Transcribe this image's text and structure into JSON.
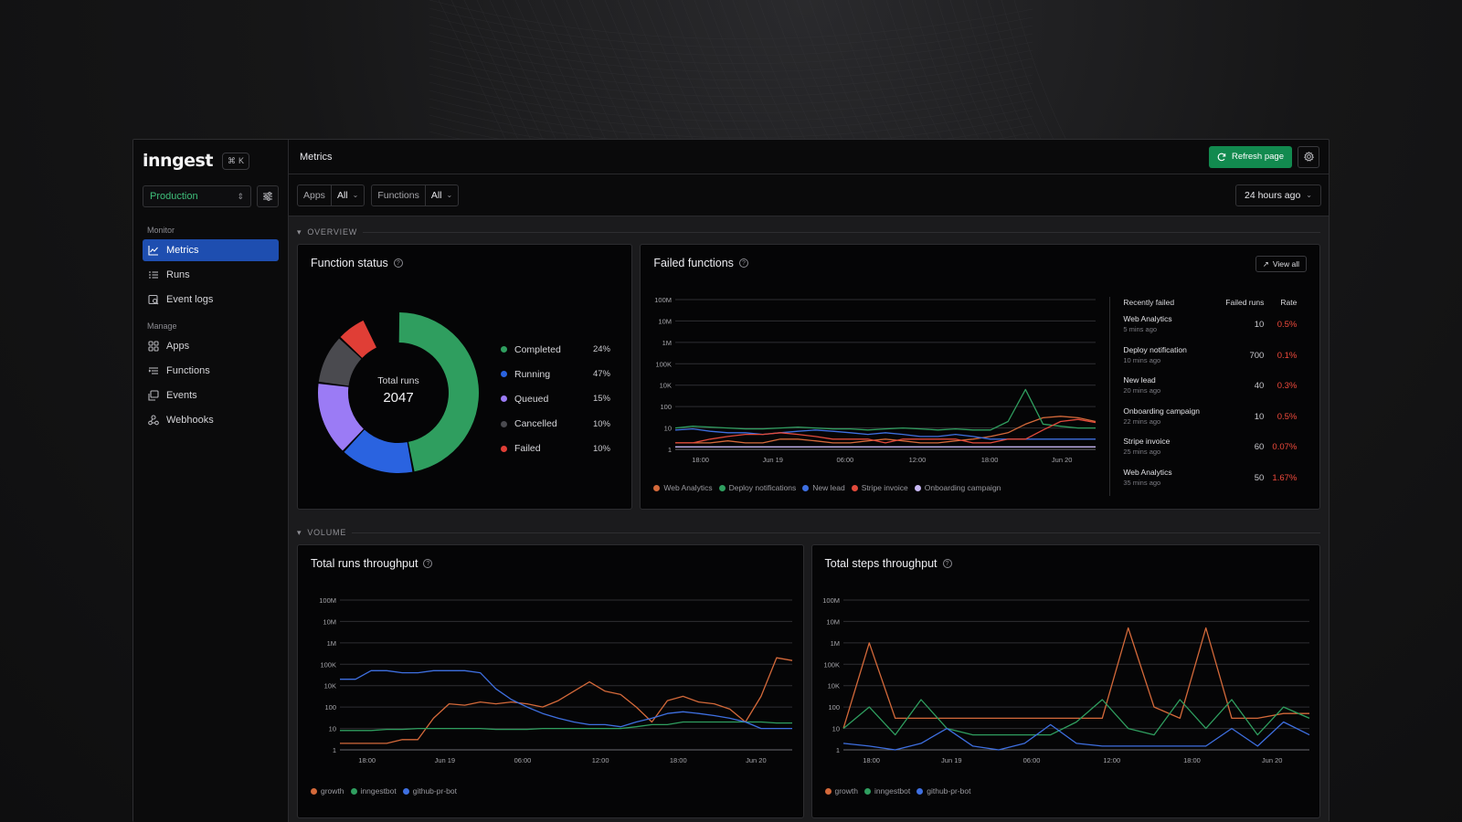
{
  "brand": {
    "logo": "inngest",
    "shortcut_symbol": "⌘",
    "shortcut_key": "K"
  },
  "sidebar": {
    "environment": "Production",
    "groups": [
      {
        "label": "Monitor",
        "items": [
          {
            "label": "Metrics",
            "icon": "chart-line-icon",
            "active": true
          },
          {
            "label": "Runs",
            "icon": "list-icon"
          },
          {
            "label": "Event logs",
            "icon": "event-log-icon"
          }
        ]
      },
      {
        "label": "Manage",
        "items": [
          {
            "label": "Apps",
            "icon": "apps-grid-icon"
          },
          {
            "label": "Functions",
            "icon": "functions-icon"
          },
          {
            "label": "Events",
            "icon": "events-icon"
          },
          {
            "label": "Webhooks",
            "icon": "webhooks-icon"
          }
        ]
      }
    ]
  },
  "header": {
    "title": "Metrics",
    "refresh_label": "Refresh page"
  },
  "filters": {
    "apps_label": "Apps",
    "apps_value": "All",
    "functions_label": "Functions",
    "functions_value": "All",
    "time_range": "24 hours ago"
  },
  "sections": {
    "overview": "OVERVIEW",
    "volume": "VOLUME"
  },
  "colors": {
    "accent_green": "#128a4f",
    "accent_blue": "#1e4eb0",
    "completed": "#2f9e5f",
    "running": "#2a63e0",
    "queued": "#9b7bf5",
    "cancelled": "#4a4a4f",
    "failed": "#e03e36",
    "series_orange": "#d4693a",
    "series_green": "#2f9e5f",
    "series_blue": "#3e6fe0",
    "series_red": "#e24a3b",
    "series_lavender": "#c8b8f5"
  },
  "function_status": {
    "title": "Function status",
    "center_label": "Total runs",
    "center_value": "2047",
    "chart_data": {
      "type": "pie",
      "labels": [
        "Completed",
        "Running",
        "Queued",
        "Cancelled",
        "Failed"
      ],
      "values": [
        24,
        47,
        15,
        10,
        10
      ],
      "value_labels": [
        "24%",
        "47%",
        "15%",
        "10%",
        "10%"
      ]
    }
  },
  "failed_functions": {
    "title": "Failed functions",
    "view_all": "View all",
    "table": {
      "headers": [
        "Recently failed",
        "Failed runs",
        "Rate"
      ],
      "rows": [
        {
          "name": "Web Analytics",
          "time": "5 mins ago",
          "runs": "10",
          "rate": "0.5%"
        },
        {
          "name": "Deploy notification",
          "time": "10 mins ago",
          "runs": "700",
          "rate": "0.1%"
        },
        {
          "name": "New lead",
          "time": "20 mins ago",
          "runs": "40",
          "rate": "0.3%"
        },
        {
          "name": "Onboarding campaign",
          "time": "22 mins ago",
          "runs": "10",
          "rate": "0.5%"
        },
        {
          "name": "Stripe invoice",
          "time": "25 mins ago",
          "runs": "60",
          "rate": "0.07%"
        },
        {
          "name": "Web Analytics",
          "time": "35 mins ago",
          "runs": "50",
          "rate": "1.67%"
        }
      ]
    },
    "chart_data": {
      "type": "line",
      "y_scale": "log",
      "y_ticks": [
        "1",
        "10",
        "100",
        "10K",
        "100K",
        "1M",
        "10M",
        "100M"
      ],
      "x_ticks": [
        "18:00",
        "Jun 19",
        "06:00",
        "12:00",
        "18:00",
        "Jun 20"
      ],
      "series": [
        {
          "name": "Web Analytics",
          "color": "#d4693a",
          "values": [
            2,
            2,
            2,
            2.5,
            2,
            2,
            3,
            3,
            2.5,
            2,
            2,
            2.5,
            3,
            2.5,
            2,
            2,
            2.5,
            3,
            4,
            6,
            15,
            30,
            35,
            30,
            20
          ]
        },
        {
          "name": "Deploy notifications",
          "color": "#2f9e5f",
          "values": [
            10,
            12,
            11,
            10,
            9,
            9,
            10,
            11,
            10,
            9,
            9,
            8,
            9,
            10,
            9,
            8,
            9,
            8,
            8,
            20,
            4000,
            15,
            12,
            10,
            10
          ]
        },
        {
          "name": "New lead",
          "color": "#3e6fe0",
          "values": [
            8,
            9,
            7,
            6,
            6,
            5,
            6,
            7,
            8,
            7,
            6,
            5,
            6,
            5,
            4,
            4,
            5,
            4,
            3,
            3,
            3,
            3,
            3,
            3,
            3
          ]
        },
        {
          "name": "Stripe invoice",
          "color": "#e24a3b",
          "values": [
            2,
            2,
            3,
            4,
            5,
            5,
            6,
            5,
            4,
            3,
            3,
            3,
            2,
            3,
            3,
            3,
            3,
            2,
            2,
            3,
            3,
            8,
            20,
            25,
            18
          ]
        },
        {
          "name": "Onboarding campaign",
          "color": "#c8b8f5",
          "values": [
            1.3,
            1.3,
            1.3,
            1.3,
            1.3,
            1.3,
            1.3,
            1.3,
            1.3,
            1.3,
            1.3,
            1.3,
            1.3,
            1.3,
            1.3,
            1.3,
            1.3,
            1.3,
            1.3,
            1.3,
            1.3,
            1.3,
            1.3,
            1.3,
            1.3
          ]
        }
      ]
    }
  },
  "runs_throughput": {
    "title": "Total runs throughput",
    "chart_data": {
      "type": "line",
      "y_scale": "log",
      "y_ticks": [
        "1",
        "10",
        "100",
        "10K",
        "100K",
        "1M",
        "10M",
        "100M"
      ],
      "x_ticks": [
        "18:00",
        "Jun 19",
        "06:00",
        "12:00",
        "18:00",
        "Jun 20"
      ],
      "series": [
        {
          "name": "growth",
          "color": "#d4693a",
          "values": [
            2,
            2,
            2,
            2,
            3,
            3,
            30,
            200,
            150,
            300,
            200,
            300,
            200,
            100,
            400,
            3000,
            15000,
            3000,
            1500,
            100,
            20,
            400,
            1000,
            300,
            200,
            80,
            20,
            1000,
            200000,
            150000
          ]
        },
        {
          "name": "inngestbot",
          "color": "#2f9e5f",
          "values": [
            8,
            8,
            8,
            9,
            9,
            10,
            10,
            10,
            10,
            10,
            9,
            9,
            9,
            10,
            10,
            10,
            10,
            10,
            10,
            12,
            15,
            15,
            20,
            20,
            20,
            20,
            20,
            20,
            18,
            18
          ]
        },
        {
          "name": "github-pr-bot",
          "color": "#3e6fe0",
          "values": [
            20000,
            20000,
            50000,
            50000,
            40000,
            40000,
            50000,
            50000,
            50000,
            40000,
            5000,
            500,
            100,
            50,
            30,
            20,
            15,
            15,
            12,
            20,
            30,
            50,
            60,
            50,
            40,
            30,
            20,
            10,
            10,
            10
          ]
        }
      ]
    }
  },
  "steps_throughput": {
    "title": "Total steps throughput",
    "chart_data": {
      "type": "line",
      "y_scale": "log",
      "y_ticks": [
        "1",
        "10",
        "100",
        "10K",
        "100K",
        "1M",
        "10M",
        "100M"
      ],
      "x_ticks": [
        "18:00",
        "Jun 19",
        "06:00",
        "12:00",
        "18:00",
        "Jun 20"
      ],
      "series": [
        {
          "name": "growth",
          "color": "#d4693a",
          "values": [
            10,
            1000000,
            30,
            30,
            30,
            30,
            30,
            30,
            30,
            30,
            30,
            5000000,
            100,
            30,
            5000000,
            30,
            30,
            50,
            50
          ]
        },
        {
          "name": "inngestbot",
          "color": "#2f9e5f",
          "values": [
            10,
            100,
            5,
            500,
            10,
            5,
            5,
            5,
            5,
            20,
            500,
            10,
            5,
            500,
            10,
            500,
            5,
            100,
            30
          ]
        },
        {
          "name": "github-pr-bot",
          "color": "#3e6fe0",
          "values": [
            2,
            1.5,
            1,
            2,
            10,
            1.5,
            1,
            2,
            15,
            2,
            1.5,
            1.5,
            1.5,
            1.5,
            1.5,
            10,
            1.5,
            20,
            5
          ]
        }
      ]
    }
  }
}
